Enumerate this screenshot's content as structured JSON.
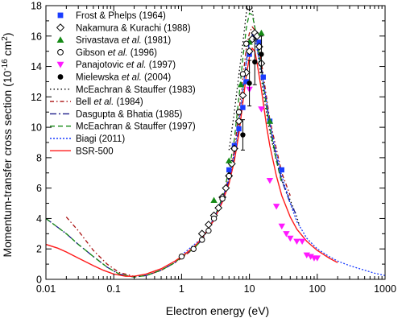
{
  "chart_data": {
    "type": "scatter",
    "xlabel": "Electron energy (eV)",
    "ylabel": "Momentum-transfer cross section (10^-16 cm^2)",
    "ylabel_parts": {
      "main": "Momentum-transfer cross section (10",
      "exp1": "-16",
      "mid": " cm",
      "exp2": "2",
      "end": ")"
    },
    "x_scale": "log",
    "xlim": [
      0.01,
      1000
    ],
    "ylim": [
      0,
      18
    ],
    "x_ticks": [
      0.01,
      0.1,
      1,
      10,
      100,
      1000
    ],
    "x_tick_labels": [
      "0.01",
      "0.1",
      "1",
      "10",
      "100",
      "1000"
    ],
    "y_ticks": [
      0,
      2,
      4,
      6,
      8,
      10,
      12,
      14,
      16,
      18
    ],
    "y_tick_labels": [
      "0",
      "2",
      "4",
      "6",
      "8",
      "10",
      "12",
      "14",
      "16",
      "18"
    ],
    "legend_position": "top-left",
    "series": [
      {
        "name": "Frost & Phelps (1964)",
        "marker": "square",
        "color": "#1a3cff",
        "points": [
          [
            5.0,
            7.2
          ],
          [
            6.0,
            8.8
          ],
          [
            7.0,
            9.9
          ],
          [
            8.0,
            11.3
          ],
          [
            9.0,
            13.0
          ],
          [
            10.0,
            14.8
          ],
          [
            12.0,
            16.0
          ],
          [
            14.0,
            15.6
          ],
          [
            16.0,
            13.3
          ],
          [
            20.0,
            10.4
          ],
          [
            30.0,
            7.2
          ]
        ]
      },
      {
        "name": "Nakamura & Kurachi (1988)",
        "marker": "diamond",
        "color": "#000000",
        "points": [
          [
            2.0,
            3.0
          ],
          [
            2.5,
            3.6
          ],
          [
            3.0,
            4.2
          ],
          [
            3.5,
            4.7
          ],
          [
            4.0,
            5.4
          ],
          [
            4.5,
            6.0
          ],
          [
            5.0,
            6.8
          ],
          [
            5.5,
            7.6
          ],
          [
            6.0,
            8.6
          ],
          [
            7.0,
            10.4
          ],
          [
            8.0,
            12.1
          ],
          [
            9.0,
            13.6
          ],
          [
            10.0,
            15.0
          ],
          [
            11.0,
            15.8
          ],
          [
            12.0,
            16.2
          ],
          [
            13.0,
            16.0
          ],
          [
            14.0,
            15.3
          ],
          [
            15.0,
            14.2
          ]
        ]
      },
      {
        "name": "Srivastava et al. (1981)",
        "name_plain": "Srivastava ",
        "name_italic": "et al.",
        "name_rest": " (1981)",
        "marker": "triangle-up",
        "color": "#158a15",
        "points": [
          [
            3.0,
            5.2
          ],
          [
            5.0,
            7.8
          ],
          [
            7.5,
            12.8
          ],
          [
            10.0,
            15.6
          ],
          [
            15.0,
            16.2
          ],
          [
            20.0,
            10.4
          ]
        ]
      },
      {
        "name": "Gibson et al. (1996)",
        "name_plain": "Gibson ",
        "name_italic": "et al.",
        "name_rest": " (1996)",
        "marker": "circle-open",
        "color": "#000000",
        "points": [
          [
            1.0,
            1.5
          ],
          [
            1.5,
            2.0
          ],
          [
            2.0,
            2.6
          ],
          [
            2.5,
            3.2
          ],
          [
            3.0,
            4.0
          ],
          [
            4.0,
            5.3
          ],
          [
            5.0,
            6.8
          ],
          [
            6.0,
            8.6
          ],
          [
            7.0,
            11.0
          ],
          [
            8.0,
            13.5
          ],
          [
            9.0,
            15.5
          ],
          [
            10.0,
            17.9
          ]
        ]
      },
      {
        "name": "Panajotovic et al. (1997)",
        "name_plain": "Panajotovic ",
        "name_italic": "et al.",
        "name_rest": " (1997)",
        "marker": "triangle-down",
        "color": "#ff19ff",
        "points": [
          [
            10.0,
            12.5
          ],
          [
            15.0,
            11.2
          ],
          [
            20.0,
            6.5
          ],
          [
            25.0,
            4.8
          ],
          [
            30.0,
            3.5
          ],
          [
            35.0,
            3.0
          ],
          [
            40.0,
            2.7
          ],
          [
            50.0,
            2.5
          ],
          [
            60.0,
            2.5
          ],
          [
            70.0,
            1.6
          ],
          [
            80.0,
            1.5
          ],
          [
            90.0,
            1.4
          ],
          [
            100.0,
            1.4
          ]
        ]
      },
      {
        "name": "Mielewska et al. (2004)",
        "name_plain": "Mielewska ",
        "name_italic": "et al.",
        "name_rest": " (2004)",
        "marker": "circle-filled",
        "color": "#000000",
        "points": [
          [
            8.0,
            9.5
          ],
          [
            10.0,
            12.9
          ],
          [
            12.0,
            14.3
          ],
          [
            15.0,
            14.8
          ]
        ],
        "error_bars": [
          1.0,
          1.5,
          1.5,
          1.2
        ]
      },
      {
        "name": "McEachran & Stauffer (1983)",
        "line": "dotted",
        "color": "#000000",
        "points": [
          [
            5,
            8.5
          ],
          [
            6,
            11
          ],
          [
            7,
            13.5
          ],
          [
            8,
            15.5
          ],
          [
            9,
            17.5
          ],
          [
            10,
            18.5
          ],
          [
            11,
            17.8
          ],
          [
            12,
            16.5
          ],
          [
            14,
            14.2
          ],
          [
            17,
            11.5
          ],
          [
            20,
            9.7
          ],
          [
            25,
            7.8
          ],
          [
            30,
            6.5
          ],
          [
            40,
            5.2
          ],
          [
            50,
            4.1
          ],
          [
            55,
            3.5
          ]
        ]
      },
      {
        "name": "Bell et al. (1984)",
        "name_plain": "Bell ",
        "name_italic": "et al.",
        "name_rest": " (1984)",
        "line": "dashdot",
        "color": "#aa1111",
        "points": [
          [
            0.02,
            4.1
          ],
          [
            0.03,
            3.2
          ],
          [
            0.05,
            1.9
          ],
          [
            0.08,
            1.0
          ],
          [
            0.12,
            0.45
          ],
          [
            0.2,
            0.2
          ],
          [
            0.3,
            0.25
          ],
          [
            0.5,
            0.6
          ],
          [
            0.8,
            1.1
          ],
          [
            1,
            1.4
          ],
          [
            1.5,
            2.0
          ],
          [
            2,
            2.7
          ],
          [
            3,
            4.0
          ],
          [
            4,
            5.2
          ],
          [
            5,
            6.8
          ],
          [
            6,
            8.5
          ],
          [
            7,
            11.0
          ],
          [
            8,
            13.2
          ],
          [
            9,
            15.2
          ],
          [
            10,
            16.2
          ],
          [
            11,
            16.6
          ],
          [
            12,
            16.4
          ],
          [
            13,
            15.8
          ],
          [
            15,
            14.3
          ],
          [
            20,
            10.5
          ],
          [
            30,
            7.0
          ],
          [
            40,
            5.5
          ]
        ]
      },
      {
        "name": "Dasgupta & Bhatia (1985)",
        "line": "dashdot-long",
        "color": "#1a1a88",
        "points": [
          [
            0.01,
            4.0
          ],
          [
            0.02,
            3.0
          ],
          [
            0.03,
            2.3
          ],
          [
            0.05,
            1.5
          ],
          [
            0.08,
            0.8
          ],
          [
            0.12,
            0.35
          ],
          [
            0.2,
            0.15
          ],
          [
            0.3,
            0.25
          ],
          [
            0.5,
            0.6
          ],
          [
            0.8,
            1.1
          ],
          [
            1,
            1.5
          ],
          [
            1.5,
            2.0
          ],
          [
            2,
            2.6
          ],
          [
            3,
            3.9
          ],
          [
            4,
            5.2
          ],
          [
            5,
            6.5
          ],
          [
            6,
            8.0
          ],
          [
            7,
            10.0
          ],
          [
            8,
            12.2
          ],
          [
            9,
            14.3
          ],
          [
            10,
            15.6
          ],
          [
            11,
            16.1
          ],
          [
            12,
            16.0
          ],
          [
            13,
            15.4
          ],
          [
            15,
            14.0
          ],
          [
            18,
            11.5
          ],
          [
            20,
            10.2
          ],
          [
            25,
            8.0
          ],
          [
            30,
            6.5
          ],
          [
            40,
            5.0
          ],
          [
            50,
            4.2
          ]
        ]
      },
      {
        "name": "McEachran & Stauffer (1997)",
        "line": "dashed",
        "color": "#158a15",
        "points": [
          [
            0.01,
            4.0
          ],
          [
            0.02,
            3.0
          ],
          [
            0.03,
            2.3
          ],
          [
            0.05,
            1.5
          ],
          [
            0.08,
            0.8
          ],
          [
            0.12,
            0.35
          ],
          [
            0.2,
            0.15
          ],
          [
            0.3,
            0.25
          ],
          [
            0.5,
            0.6
          ],
          [
            0.8,
            1.1
          ],
          [
            1,
            1.5
          ],
          [
            1.5,
            2.0
          ],
          [
            2,
            2.6
          ],
          [
            3,
            4.0
          ],
          [
            4,
            5.4
          ],
          [
            5,
            7.2
          ],
          [
            6,
            9.2
          ],
          [
            7,
            12.0
          ],
          [
            8,
            14.5
          ],
          [
            9,
            16.5
          ],
          [
            10,
            17.5
          ],
          [
            11,
            17.4
          ],
          [
            12,
            16.6
          ],
          [
            13,
            15.6
          ],
          [
            15,
            13.8
          ],
          [
            18,
            11.2
          ],
          [
            20,
            10.0
          ],
          [
            25,
            7.8
          ],
          [
            30,
            6.3
          ]
        ]
      },
      {
        "name": "Biagi (2011)",
        "line": "dotted-fine",
        "color": "#1a3cff",
        "points": [
          [
            1,
            1.6
          ],
          [
            2,
            2.7
          ],
          [
            3,
            4.0
          ],
          [
            4,
            5.3
          ],
          [
            5,
            6.7
          ],
          [
            6,
            8.3
          ],
          [
            7,
            10.3
          ],
          [
            8,
            12.5
          ],
          [
            9,
            14.3
          ],
          [
            10,
            15.6
          ],
          [
            11,
            16.0
          ],
          [
            12,
            15.8
          ],
          [
            13,
            15.1
          ],
          [
            15,
            13.7
          ],
          [
            18,
            11.6
          ],
          [
            20,
            10.3
          ],
          [
            25,
            8.3
          ],
          [
            30,
            6.8
          ],
          [
            40,
            5.0
          ],
          [
            50,
            3.8
          ],
          [
            70,
            2.7
          ],
          [
            100,
            2.0
          ],
          [
            150,
            1.5
          ],
          [
            200,
            1.2
          ],
          [
            300,
            0.9
          ],
          [
            500,
            0.6
          ],
          [
            700,
            0.4
          ],
          [
            1000,
            0.25
          ]
        ]
      },
      {
        "name": "BSR-500",
        "line": "solid",
        "color": "#ff1a1a",
        "points": [
          [
            0.01,
            2.3
          ],
          [
            0.015,
            2.05
          ],
          [
            0.02,
            1.8
          ],
          [
            0.03,
            1.4
          ],
          [
            0.05,
            0.9
          ],
          [
            0.07,
            0.6
          ],
          [
            0.1,
            0.35
          ],
          [
            0.15,
            0.2
          ],
          [
            0.2,
            0.2
          ],
          [
            0.3,
            0.35
          ],
          [
            0.5,
            0.7
          ],
          [
            0.8,
            1.2
          ],
          [
            1,
            1.5
          ],
          [
            1.5,
            2.1
          ],
          [
            2,
            2.7
          ],
          [
            3,
            3.9
          ],
          [
            4,
            5.1
          ],
          [
            5,
            6.3
          ],
          [
            6,
            7.8
          ],
          [
            7,
            9.6
          ],
          [
            8,
            11.6
          ],
          [
            9,
            13.4
          ],
          [
            10,
            14.6
          ],
          [
            11,
            15.2
          ],
          [
            12,
            15.0
          ],
          [
            13,
            14.2
          ],
          [
            15,
            12.5
          ],
          [
            18,
            10.0
          ],
          [
            20,
            8.8
          ],
          [
            25,
            6.8
          ],
          [
            30,
            5.5
          ],
          [
            40,
            4.1
          ],
          [
            50,
            3.3
          ],
          [
            70,
            2.5
          ],
          [
            100,
            1.9
          ],
          [
            150,
            1.4
          ],
          [
            200,
            1.1
          ]
        ]
      }
    ]
  }
}
